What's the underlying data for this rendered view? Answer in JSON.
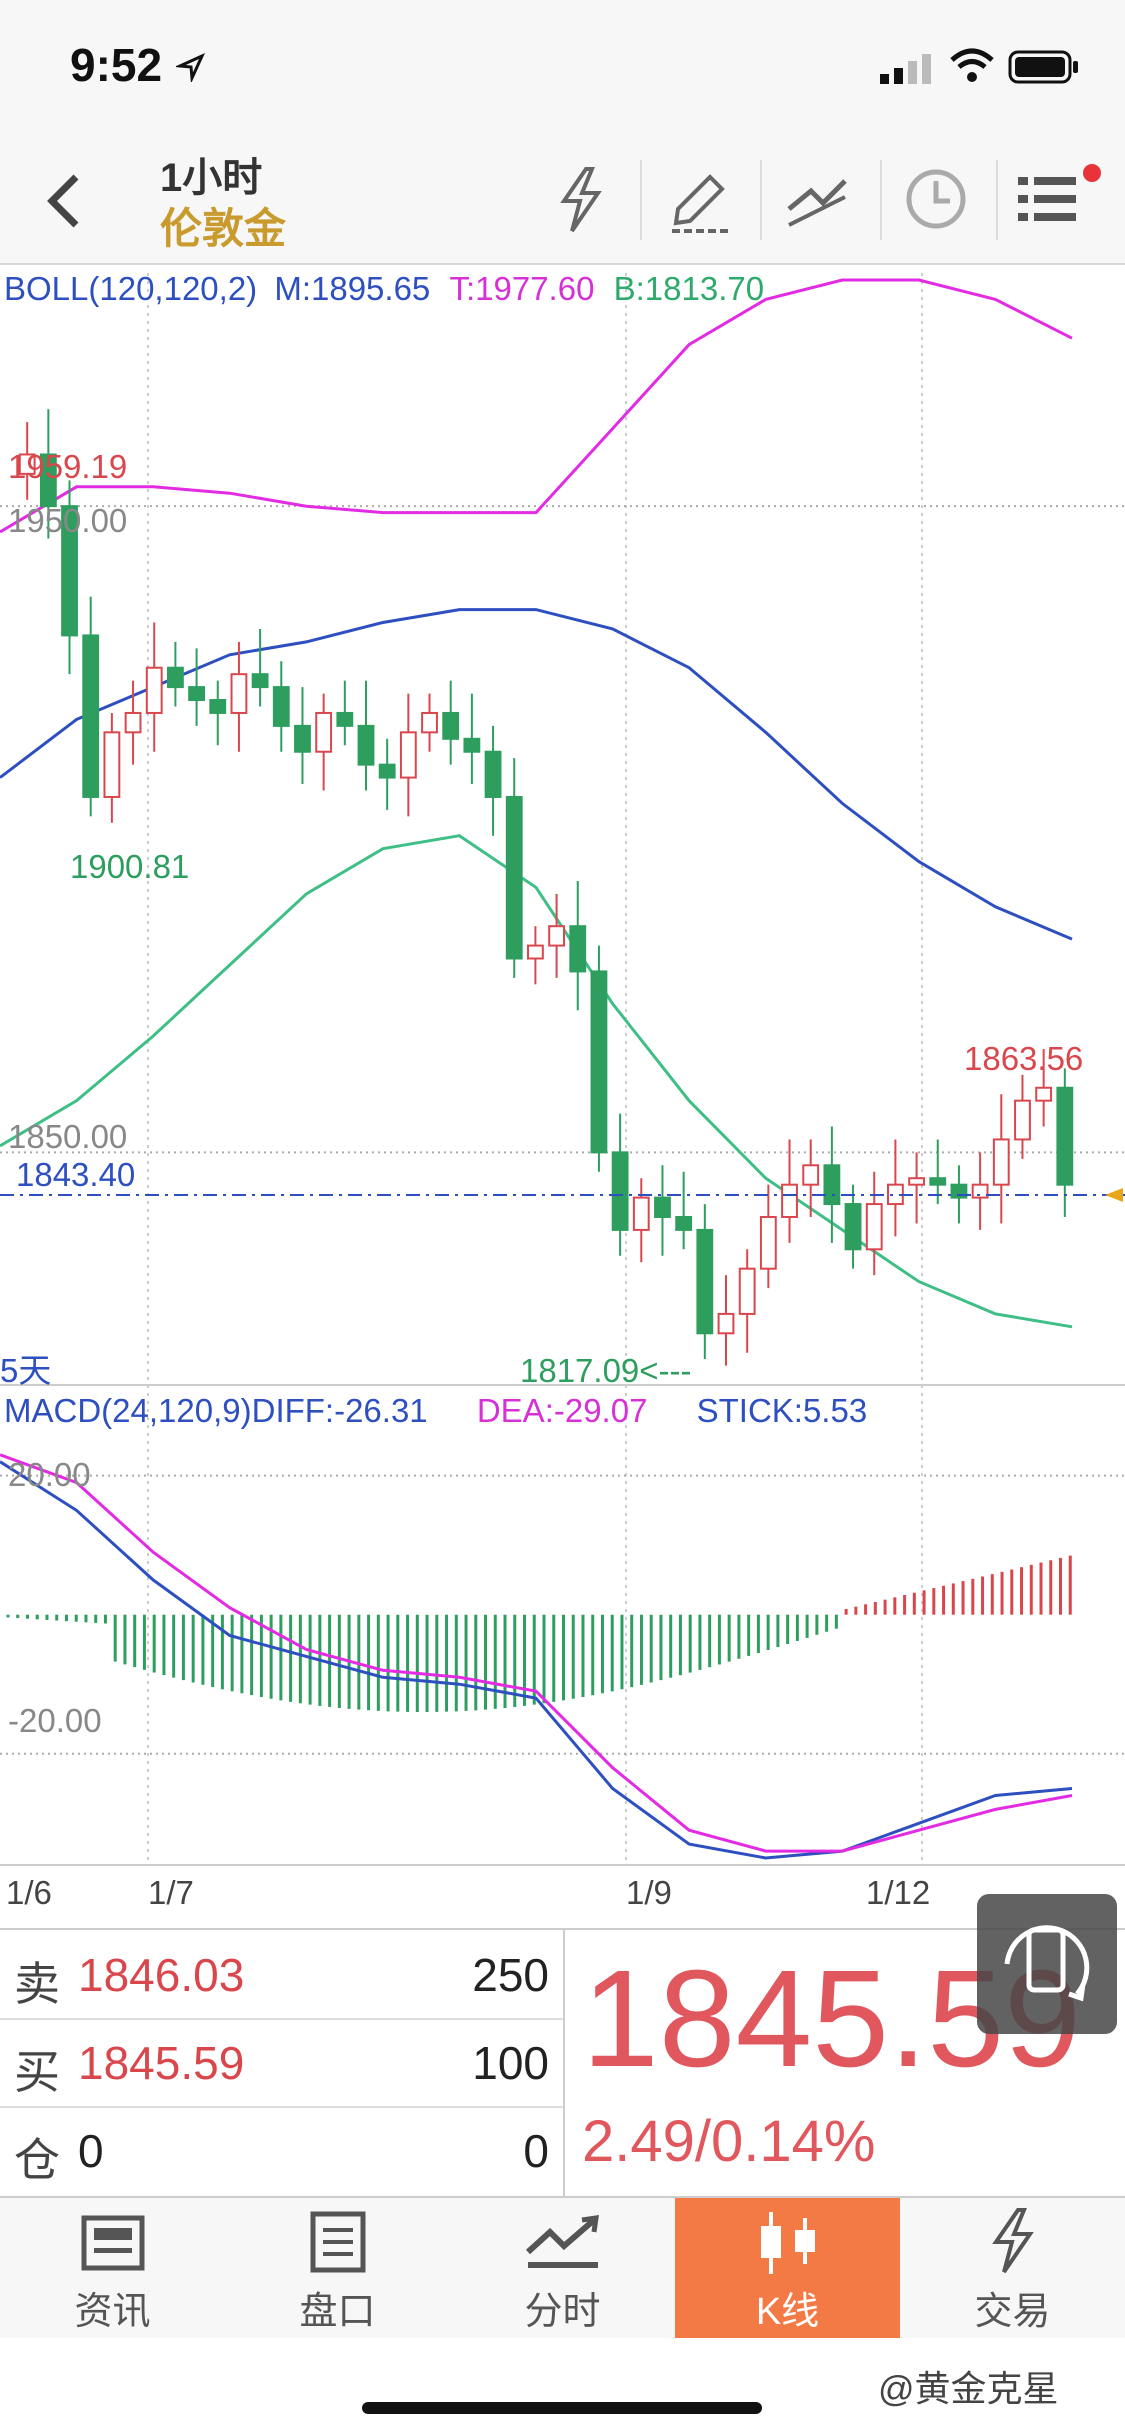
{
  "status_bar": {
    "time": "9:52",
    "icons": [
      "location-arrow-icon",
      "signal-icon",
      "wifi-icon",
      "battery-icon"
    ]
  },
  "header": {
    "timeframe": "1小时",
    "instrument": "伦敦金",
    "icons": [
      "back-icon",
      "lightning-icon",
      "draw-icon",
      "trendline-icon",
      "clock-icon",
      "menu-icon"
    ]
  },
  "boll": {
    "label": "BOLL(120,120,2)",
    "m": "M:1895.65",
    "t": "T:1977.60",
    "b": "B:1813.70"
  },
  "price_labels": {
    "high1": "1959.19",
    "level_top": "1950.00",
    "low1": "1900.81",
    "level_bottom": "1850.00",
    "current": "1843.40",
    "high2": "1863.56",
    "low2": "1817.09<---",
    "period": "5天"
  },
  "macd": {
    "label": "MACD(24,120,9)",
    "diff": "DIFF:-26.31",
    "dea": "DEA:-29.07",
    "stick": "STICK:5.53",
    "level_top": "20.00",
    "level_bottom": "-20.00"
  },
  "dates": [
    "1/6",
    "1/7",
    "1/9",
    "1/12"
  ],
  "quote": {
    "sell": {
      "label": "卖",
      "price": "1846.03",
      "qty": "250"
    },
    "buy": {
      "label": "买",
      "price": "1845.59",
      "qty": "100"
    },
    "position": {
      "label": "仓",
      "value": "0",
      "qty": "0"
    },
    "last_price": "1845.59",
    "change": "2.49/0.14%"
  },
  "tabs": [
    {
      "label": "资讯",
      "icon": "news-icon"
    },
    {
      "label": "盘口",
      "icon": "orderbook-icon"
    },
    {
      "label": "分时",
      "icon": "timeshare-icon"
    },
    {
      "label": "K线",
      "icon": "candlestick-icon",
      "active": true
    },
    {
      "label": "交易",
      "icon": "trade-icon"
    }
  ],
  "watermark": "@黄金克星",
  "colors": {
    "up": "#d9474d",
    "down": "#2e9e5f",
    "m_line": "#2d4fbf",
    "t_line": "#e22be2",
    "b_line": "#3fbf86",
    "accent": "#f47a45",
    "gold": "#c99a2e"
  },
  "chart_data": {
    "type": "candlestick",
    "price_range": [
      1814,
      1985
    ],
    "indicators": {
      "boll": {
        "upper": [
          1946,
          1953,
          1953,
          1952,
          1950,
          1949,
          1949,
          1949,
          1962,
          1975,
          1982,
          1985,
          1985,
          1982,
          1976
        ],
        "middle": [
          1908,
          1917,
          1922,
          1927,
          1929,
          1932,
          1934,
          1934,
          1931,
          1925,
          1915,
          1904,
          1895,
          1888,
          1883
        ],
        "lower": [
          1851,
          1858,
          1868,
          1879,
          1890,
          1897,
          1899,
          1891,
          1873,
          1858,
          1846,
          1838,
          1830,
          1825,
          1823
        ]
      }
    },
    "macd_range": [
      -36,
      28
    ],
    "macd_lines": {
      "diff": [
        22,
        15,
        5,
        -3,
        -6,
        -9,
        -10,
        -12,
        -25,
        -33,
        -35,
        -34,
        -30,
        -26,
        -25
      ],
      "dea": [
        23,
        19,
        9,
        1,
        -5,
        -8,
        -9,
        -11,
        -22,
        -31,
        -34,
        -34,
        -31,
        -28,
        -26
      ]
    }
  }
}
